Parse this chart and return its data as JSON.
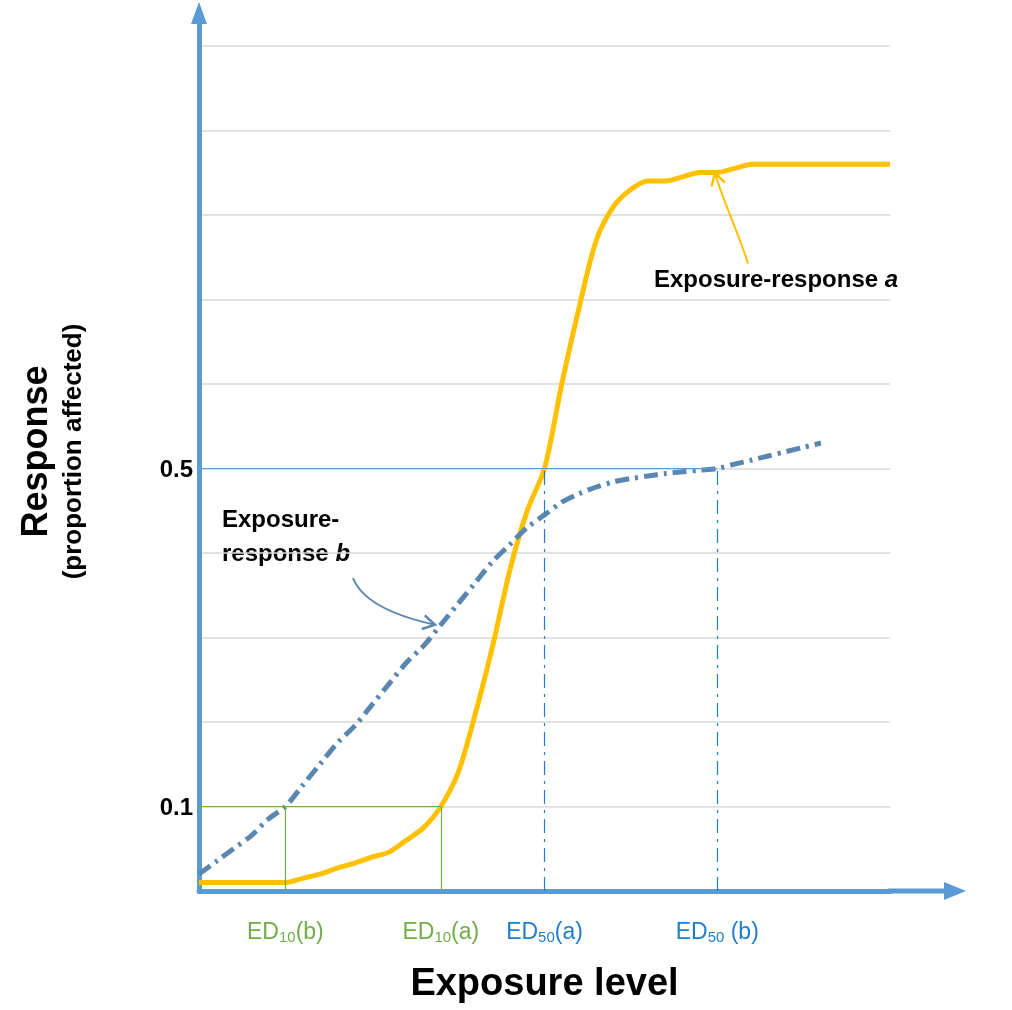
{
  "chart_data": {
    "type": "line",
    "xlabel": "Exposure level",
    "ylabel": "Response\n(proportion affected)",
    "categories": [
      null,
      null,
      null,
      null,
      null,
      "ED$_{10}$(b)",
      null,
      null,
      null,
      null,
      null,
      null,
      null,
      null,
      "ED$_{10}$(a)",
      null,
      null,
      null,
      null,
      null,
      "ED$_{50}$(a)",
      null,
      null,
      null,
      null,
      null,
      null,
      null,
      null,
      null,
      "ED$_{50}$ (b)",
      null,
      null,
      null,
      null,
      null,
      null,
      null,
      null,
      null,
      null
    ],
    "series": [
      {
        "color": "#ffc000",
        "line_style": "solid",
        "values": [
          0.01,
          0.01,
          0.01,
          0.01,
          0.01,
          0.01,
          0.015,
          0.02,
          0.027,
          0.033,
          0.04,
          0.046,
          0.06,
          0.075,
          0.1,
          0.14,
          0.21,
          0.29,
          0.38,
          0.45,
          0.5,
          0.6,
          0.69,
          0.77,
          0.81,
          0.83,
          0.84,
          0.84,
          0.845,
          0.85,
          0.85,
          0.855,
          0.86,
          0.86,
          0.86,
          0.86,
          0.86,
          0.86,
          0.86,
          0.86,
          0.86
        ]
      },
      {
        "color": "#5a87b0",
        "line_style": "dashed",
        "values": [
          0.02,
          0.035,
          0.05,
          0.065,
          0.085,
          0.1,
          0.125,
          0.15,
          0.175,
          0.195,
          0.22,
          0.245,
          0.27,
          0.29,
          0.315,
          0.34,
          0.365,
          0.39,
          0.41,
          0.43,
          0.445,
          0.46,
          0.47,
          0.478,
          0.484,
          0.488,
          0.491,
          0.494,
          0.496,
          0.498,
          0.5,
          0.505,
          0.51,
          0.515,
          0.52,
          0.525,
          0.53,
          null,
          null,
          null,
          null
        ]
      }
    ],
    "ylim": [
      0,
      1.04
    ],
    "yticks": [
      {
        "value": 0.1,
        "label": "0.1"
      },
      {
        "value": 0.2,
        "label": null
      },
      {
        "value": 0.3,
        "label": null
      },
      {
        "value": 0.4,
        "label": null
      },
      {
        "value": 0.5,
        "label": "0.5"
      },
      {
        "value": 0.6,
        "label": null
      },
      {
        "value": 0.7,
        "label": null
      },
      {
        "value": 0.8,
        "label": null
      },
      {
        "value": 0.9,
        "label": null
      },
      {
        "value": 1.0,
        "label": null
      }
    ],
    "annotations": [
      {
        "text": "Exposure-response a",
        "x": "ED$_{50}$ (b)",
        "y": 0.85
      },
      {
        "text": "Exposure-response b",
        "x": "ED$_{10}$(a)",
        "y": 0.315
      }
    ],
    "grid": "y",
    "marker": "none",
    "ref_lines": [
      {
        "axis": "y",
        "value": 0.1,
        "color": "#70ad47",
        "line_style": "solid"
      },
      {
        "axis": "y",
        "value": 0.5,
        "color": "#5b9bd5",
        "line_style": "solid"
      },
      {
        "axis": "x",
        "value": "ED$_{10}$(b)",
        "color": "#70ad47",
        "line_style": "solid"
      },
      {
        "axis": "x",
        "value": "ED$_{10}$(a)",
        "color": "#70ad47",
        "line_style": "solid"
      },
      {
        "axis": "x",
        "value": "ED$_{50}$(a)",
        "color": "#1f7ccf",
        "line_style": "dashed"
      },
      {
        "axis": "x",
        "value": "ED$_{50}$ (b)",
        "color": "#1f7ccf",
        "line_style": "dashed"
      }
    ]
  }
}
